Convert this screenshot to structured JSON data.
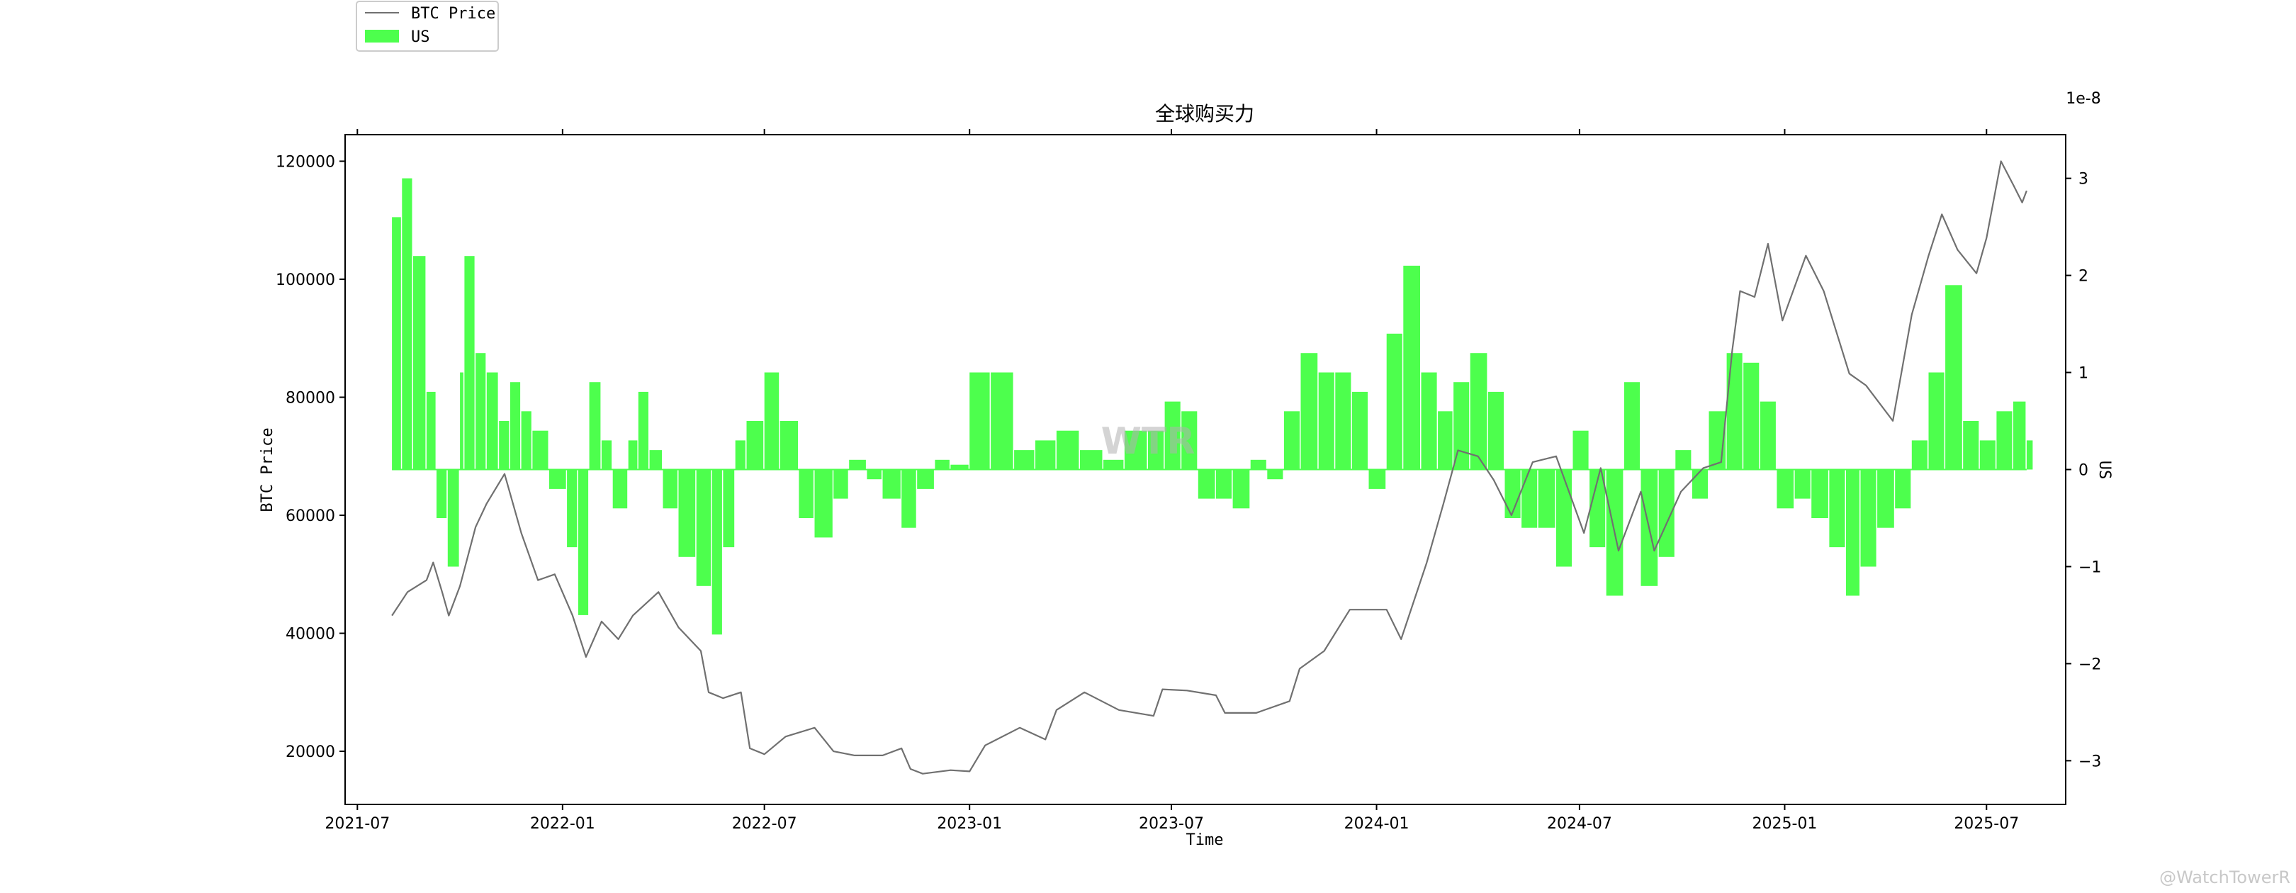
{
  "chart_data": {
    "type": "bar",
    "title": "全球购买力",
    "xlabel": "Time",
    "ylabel": "BTC Price",
    "y2label": "US",
    "y2_offset_text": "1e-8",
    "x_tick_labels": [
      "2021-07",
      "2022-01",
      "2022-07",
      "2023-01",
      "2023-07",
      "2024-01",
      "2024-07",
      "2025-01",
      "2025-07"
    ],
    "y_ticks": [
      20000,
      40000,
      60000,
      80000,
      100000,
      120000
    ],
    "y2_ticks": [
      -3,
      -2,
      -1,
      0,
      1,
      2,
      3
    ],
    "ylim": [
      11000,
      124500
    ],
    "y2lim": [
      -3.45,
      3.45
    ],
    "xlim": [
      "2021-06-20",
      "2025-09-10"
    ],
    "legend_position": "upper-left-outside",
    "grid": false,
    "colors": {
      "price_line": "#707070",
      "us_bars": "#4dff4d"
    },
    "series": [
      {
        "name": "BTC Price",
        "kind": "line",
        "x": [
          "2021-08-01",
          "2021-08-15",
          "2021-09-01",
          "2021-09-07",
          "2021-09-15",
          "2021-09-21",
          "2021-10-01",
          "2021-10-15",
          "2021-10-25",
          "2021-11-10",
          "2021-11-25",
          "2021-12-10",
          "2021-12-25",
          "2022-01-10",
          "2022-01-22",
          "2022-02-05",
          "2022-02-20",
          "2022-03-05",
          "2022-03-28",
          "2022-04-15",
          "2022-05-05",
          "2022-05-12",
          "2022-05-25",
          "2022-06-10",
          "2022-06-18",
          "2022-07-01",
          "2022-07-20",
          "2022-08-15",
          "2022-09-01",
          "2022-09-20",
          "2022-10-15",
          "2022-11-01",
          "2022-11-09",
          "2022-11-20",
          "2022-12-15",
          "2023-01-01",
          "2023-01-15",
          "2023-02-15",
          "2023-03-10",
          "2023-03-20",
          "2023-04-14",
          "2023-05-15",
          "2023-06-15",
          "2023-06-23",
          "2023-07-15",
          "2023-08-10",
          "2023-08-18",
          "2023-09-15",
          "2023-10-15",
          "2023-10-24",
          "2023-11-15",
          "2023-12-08",
          "2024-01-10",
          "2024-01-23",
          "2024-02-15",
          "2024-03-01",
          "2024-03-14",
          "2024-04-01",
          "2024-04-15",
          "2024-05-01",
          "2024-05-20",
          "2024-06-10",
          "2024-07-05",
          "2024-07-20",
          "2024-08-05",
          "2024-08-25",
          "2024-09-06",
          "2024-09-30",
          "2024-10-20",
          "2024-11-05",
          "2024-11-15",
          "2024-11-22",
          "2024-12-05",
          "2024-12-17",
          "2024-12-30",
          "2025-01-20",
          "2025-02-05",
          "2025-02-28",
          "2025-03-15",
          "2025-04-08",
          "2025-04-25",
          "2025-05-10",
          "2025-05-22",
          "2025-06-05",
          "2025-06-22",
          "2025-07-01",
          "2025-07-14",
          "2025-07-25",
          "2025-08-02",
          "2025-08-06"
        ],
        "values": [
          43000,
          47000,
          49000,
          52000,
          47000,
          43000,
          48000,
          58000,
          62000,
          67000,
          57000,
          49000,
          50000,
          43000,
          36000,
          42000,
          39000,
          43000,
          47000,
          41000,
          37000,
          30000,
          29000,
          30000,
          20500,
          19500,
          22500,
          24000,
          20000,
          19300,
          19300,
          20500,
          17000,
          16200,
          16800,
          16600,
          21000,
          24000,
          22000,
          27000,
          30000,
          27000,
          26000,
          30500,
          30300,
          29500,
          26500,
          26500,
          28500,
          34000,
          37000,
          44000,
          44000,
          39000,
          52000,
          62000,
          71000,
          70000,
          66000,
          60000,
          69000,
          70000,
          57000,
          68000,
          54000,
          64000,
          54000,
          64000,
          68000,
          69000,
          88000,
          98000,
          97000,
          106000,
          93000,
          104000,
          98000,
          84000,
          82000,
          76000,
          94000,
          104000,
          111000,
          105000,
          101000,
          107000,
          120000,
          116000,
          113000,
          115000
        ]
      },
      {
        "name": "US",
        "kind": "bar",
        "x": [
          "2021-08-01",
          "2021-08-10",
          "2021-08-20",
          "2021-09-01",
          "2021-09-10",
          "2021-09-20",
          "2021-10-01",
          "2021-10-05",
          "2021-10-15",
          "2021-10-25",
          "2021-11-05",
          "2021-11-15",
          "2021-11-25",
          "2021-12-05",
          "2021-12-20",
          "2022-01-05",
          "2022-01-15",
          "2022-01-25",
          "2022-02-05",
          "2022-02-15",
          "2022-03-01",
          "2022-03-10",
          "2022-03-20",
          "2022-04-01",
          "2022-04-15",
          "2022-05-01",
          "2022-05-15",
          "2022-05-25",
          "2022-06-05",
          "2022-06-15",
          "2022-07-01",
          "2022-07-15",
          "2022-08-01",
          "2022-08-15",
          "2022-09-01",
          "2022-09-15",
          "2022-10-01",
          "2022-10-15",
          "2022-11-01",
          "2022-11-15",
          "2022-12-01",
          "2022-12-15",
          "2023-01-01",
          "2023-01-20",
          "2023-02-10",
          "2023-03-01",
          "2023-03-20",
          "2023-04-10",
          "2023-05-01",
          "2023-05-20",
          "2023-06-10",
          "2023-06-25",
          "2023-07-10",
          "2023-07-25",
          "2023-08-10",
          "2023-08-25",
          "2023-09-10",
          "2023-09-25",
          "2023-10-10",
          "2023-10-25",
          "2023-11-10",
          "2023-11-25",
          "2023-12-10",
          "2023-12-25",
          "2024-01-10",
          "2024-01-25",
          "2024-02-10",
          "2024-02-25",
          "2024-03-10",
          "2024-03-25",
          "2024-04-10",
          "2024-04-25",
          "2024-05-10",
          "2024-05-25",
          "2024-06-10",
          "2024-06-25",
          "2024-07-10",
          "2024-07-25",
          "2024-08-10",
          "2024-08-25",
          "2024-09-10",
          "2024-09-25",
          "2024-10-10",
          "2024-10-25",
          "2024-11-10",
          "2024-11-25",
          "2024-12-10",
          "2024-12-25",
          "2025-01-10",
          "2025-01-25",
          "2025-02-10",
          "2025-02-25",
          "2025-03-10",
          "2025-03-25",
          "2025-04-10",
          "2025-04-25",
          "2025-05-10",
          "2025-05-25",
          "2025-06-10",
          "2025-06-25",
          "2025-07-10",
          "2025-07-25",
          "2025-08-06"
        ],
        "values": [
          2.6,
          3.0,
          2.2,
          0.8,
          -0.5,
          -1.0,
          1.0,
          2.2,
          1.2,
          1.0,
          0.5,
          0.9,
          0.6,
          0.4,
          -0.2,
          -0.8,
          -1.5,
          0.9,
          0.3,
          -0.4,
          0.3,
          0.8,
          0.2,
          -0.4,
          -0.9,
          -1.2,
          -1.7,
          -0.8,
          0.3,
          0.5,
          1.0,
          0.5,
          -0.5,
          -0.7,
          -0.3,
          0.1,
          -0.1,
          -0.3,
          -0.6,
          -0.2,
          0.1,
          0.05,
          1.0,
          1.0,
          0.2,
          0.3,
          0.4,
          0.2,
          0.1,
          0.4,
          0.4,
          0.7,
          0.6,
          -0.3,
          -0.3,
          -0.4,
          0.1,
          -0.1,
          0.6,
          1.2,
          1.0,
          1.0,
          0.8,
          -0.2,
          1.4,
          2.1,
          1.0,
          0.6,
          0.9,
          1.2,
          0.8,
          -0.5,
          -0.6,
          -0.6,
          -1.0,
          0.4,
          -0.8,
          -1.3,
          0.9,
          -1.2,
          -0.9,
          0.2,
          -0.3,
          0.6,
          1.2,
          1.1,
          0.7,
          -0.4,
          -0.3,
          -0.5,
          -0.8,
          -1.3,
          -1.0,
          -0.6,
          -0.4,
          0.3,
          1.0,
          1.9,
          0.5,
          0.3,
          0.6,
          0.7,
          0.3
        ]
      }
    ]
  },
  "watermarks": {
    "center": "WTR",
    "corner": "@WatchTowerR"
  }
}
